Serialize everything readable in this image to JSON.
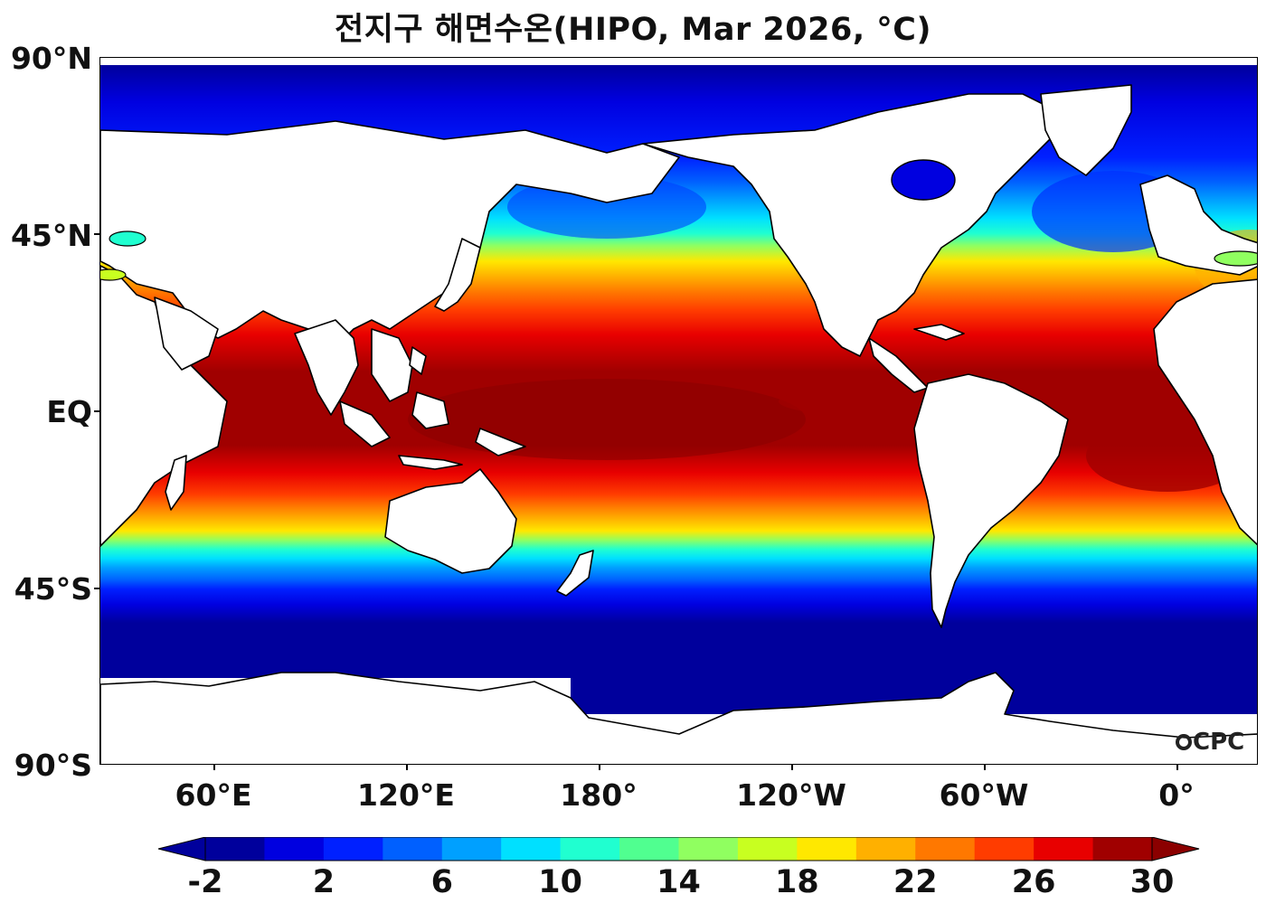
{
  "title": "전지구 해면수온(HIPO, Mar 2026, °C)",
  "logo_text": "CPC",
  "map": {
    "lat_labels": [
      "90°N",
      "45°N",
      "EQ",
      "45°S",
      "90°S"
    ],
    "lon_labels": [
      "60°E",
      "120°E",
      "180°",
      "120°W",
      "60°W",
      "0°"
    ],
    "variable": "sea surface temperature",
    "unit": "°C"
  },
  "colorbar": {
    "tick_labels": [
      "-2",
      "2",
      "6",
      "10",
      "14",
      "18",
      "22",
      "26",
      "30"
    ],
    "levels": [
      -2,
      0,
      2,
      4,
      6,
      8,
      10,
      12,
      14,
      16,
      18,
      20,
      22,
      24,
      26,
      28,
      30
    ],
    "colors": [
      "#00009c",
      "#0000e0",
      "#0020ff",
      "#0060ff",
      "#00a0ff",
      "#00e0ff",
      "#20ffd0",
      "#50ff90",
      "#90ff60",
      "#c8ff20",
      "#ffe800",
      "#ffb000",
      "#ff7800",
      "#ff3c00",
      "#e80000",
      "#a00000"
    ],
    "under_color": "#00009c",
    "over_color": "#8b0000",
    "extend": "both"
  }
}
